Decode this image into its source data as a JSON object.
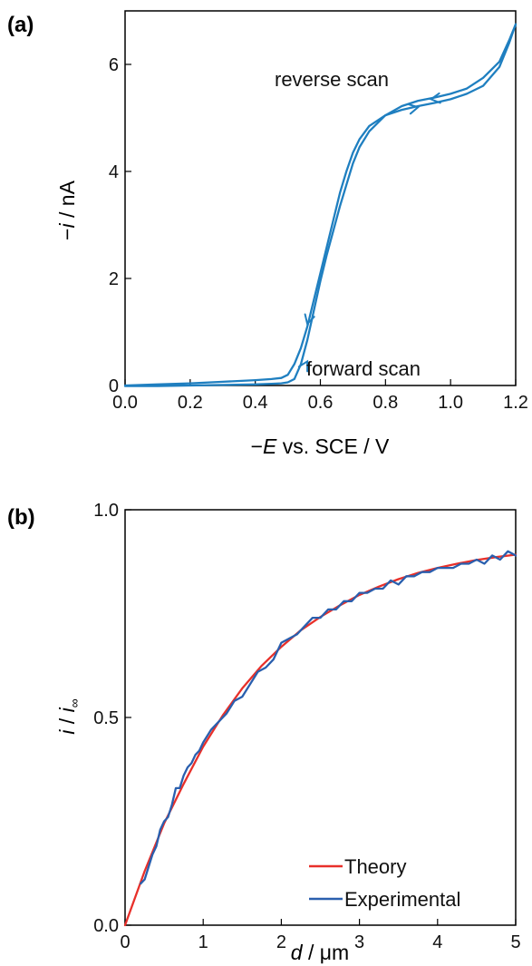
{
  "chart_data": [
    {
      "panel": "(a)",
      "type": "line",
      "xlabel_prefix": "−",
      "xlabel_italic": "E",
      "xlabel_suffix": " vs. SCE / V",
      "ylabel_prefix": "−",
      "ylabel_italic": "i",
      "ylabel_suffix": " / nA",
      "xlim": [
        0.0,
        1.2
      ],
      "ylim": [
        0,
        7
      ],
      "xticks": [
        0.0,
        0.2,
        0.4,
        0.6,
        0.8,
        1.0,
        1.2
      ],
      "xtick_labels": [
        "0.0",
        "0.2",
        "0.4",
        "0.6",
        "0.8",
        "1.0",
        "1.2"
      ],
      "yticks": [
        0,
        2,
        4,
        6
      ],
      "ytick_labels": [
        "0",
        "2",
        "4",
        "6"
      ],
      "grid": false,
      "color": "#1f7fc0",
      "annotations": [
        "reverse scan",
        "forward scan"
      ],
      "series": [
        {
          "x": [
            0.0,
            0.1,
            0.2,
            0.3,
            0.4,
            0.45,
            0.48,
            0.5,
            0.52,
            0.54,
            0.56,
            0.58,
            0.6,
            0.62,
            0.64,
            0.66,
            0.68,
            0.7,
            0.72,
            0.75,
            0.8,
            0.85,
            0.9,
            0.95,
            1.0,
            1.05,
            1.1,
            1.15,
            1.18,
            1.2
          ],
          "y": [
            0.0,
            0.02,
            0.04,
            0.07,
            0.1,
            0.12,
            0.14,
            0.2,
            0.4,
            0.7,
            1.1,
            1.6,
            2.1,
            2.6,
            3.1,
            3.6,
            4.0,
            4.35,
            4.6,
            4.85,
            5.05,
            5.15,
            5.22,
            5.28,
            5.35,
            5.45,
            5.6,
            5.95,
            6.4,
            6.75
          ]
        },
        {
          "x": [
            1.2,
            1.18,
            1.15,
            1.1,
            1.05,
            1.0,
            0.95,
            0.9,
            0.85,
            0.8,
            0.75,
            0.72,
            0.7,
            0.68,
            0.66,
            0.64,
            0.62,
            0.6,
            0.58,
            0.56,
            0.54,
            0.52,
            0.5,
            0.48,
            0.45,
            0.4,
            0.3,
            0.2,
            0.1,
            0.0
          ],
          "y": [
            6.75,
            6.45,
            6.05,
            5.75,
            5.55,
            5.45,
            5.38,
            5.32,
            5.22,
            5.05,
            4.75,
            4.45,
            4.15,
            3.75,
            3.35,
            2.9,
            2.45,
            1.95,
            1.4,
            0.85,
            0.4,
            0.12,
            0.06,
            0.04,
            0.03,
            0.02,
            0.01,
            0.0,
            -0.01,
            -0.01
          ]
        }
      ]
    },
    {
      "panel": "(b)",
      "type": "line",
      "xlabel_italic": "d",
      "xlabel_suffix": " / μm",
      "ylabel_italic": "i",
      "ylabel_mid": " / ",
      "ylabel_italic2": "i",
      "ylabel_sub": "∞",
      "xlim": [
        0,
        5
      ],
      "ylim": [
        0.0,
        1.0
      ],
      "xticks": [
        0,
        1,
        2,
        3,
        4,
        5
      ],
      "xtick_labels": [
        "0",
        "1",
        "2",
        "3",
        "4",
        "5"
      ],
      "yticks": [
        0.0,
        0.5,
        1.0
      ],
      "ytick_labels": [
        "0.0",
        "0.5",
        "1.0"
      ],
      "grid": false,
      "legend_placement": "bottom-right",
      "series": [
        {
          "name": "Theory",
          "color": "#e8302a",
          "x": [
            0.0,
            0.25,
            0.5,
            0.75,
            1.0,
            1.25,
            1.5,
            1.75,
            2.0,
            2.25,
            2.5,
            2.75,
            3.0,
            3.25,
            3.5,
            3.75,
            4.0,
            4.25,
            4.5,
            4.75,
            5.0
          ],
          "y": [
            0.0,
            0.13,
            0.245,
            0.34,
            0.43,
            0.505,
            0.57,
            0.625,
            0.67,
            0.71,
            0.742,
            0.77,
            0.795,
            0.815,
            0.833,
            0.848,
            0.86,
            0.87,
            0.879,
            0.886,
            0.892
          ]
        },
        {
          "name": "Experimental",
          "color": "#2a5fae",
          "x": [
            0.2,
            0.25,
            0.3,
            0.35,
            0.4,
            0.45,
            0.5,
            0.55,
            0.6,
            0.65,
            0.7,
            0.75,
            0.8,
            0.85,
            0.9,
            0.95,
            1.0,
            1.1,
            1.2,
            1.3,
            1.4,
            1.5,
            1.6,
            1.7,
            1.8,
            1.9,
            2.0,
            2.1,
            2.2,
            2.3,
            2.4,
            2.5,
            2.6,
            2.7,
            2.8,
            2.9,
            3.0,
            3.1,
            3.2,
            3.3,
            3.4,
            3.5,
            3.6,
            3.7,
            3.8,
            3.9,
            4.0,
            4.1,
            4.2,
            4.3,
            4.4,
            4.5,
            4.6,
            4.7,
            4.8,
            4.9,
            5.0
          ],
          "y": [
            0.1,
            0.11,
            0.14,
            0.17,
            0.19,
            0.23,
            0.25,
            0.26,
            0.29,
            0.33,
            0.33,
            0.36,
            0.38,
            0.39,
            0.41,
            0.42,
            0.44,
            0.47,
            0.49,
            0.51,
            0.54,
            0.55,
            0.58,
            0.61,
            0.62,
            0.64,
            0.68,
            0.69,
            0.7,
            0.72,
            0.74,
            0.74,
            0.76,
            0.76,
            0.78,
            0.78,
            0.8,
            0.8,
            0.81,
            0.81,
            0.83,
            0.82,
            0.84,
            0.84,
            0.85,
            0.85,
            0.86,
            0.86,
            0.86,
            0.87,
            0.87,
            0.88,
            0.87,
            0.89,
            0.88,
            0.9,
            0.89
          ]
        }
      ]
    }
  ]
}
